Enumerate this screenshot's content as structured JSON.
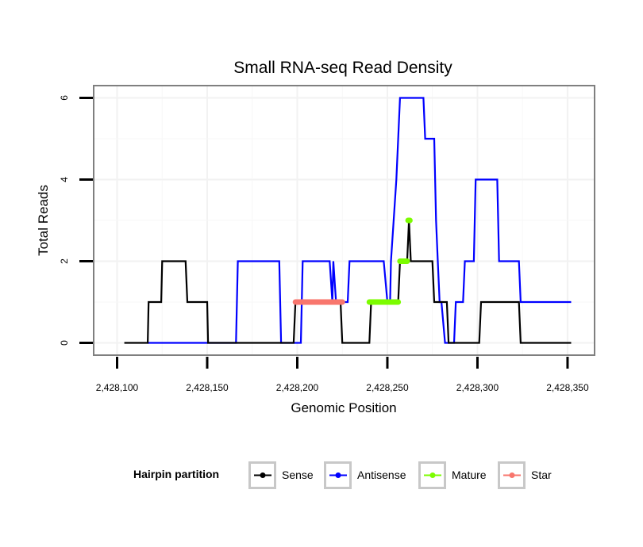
{
  "chart_data": {
    "type": "line",
    "title": "Small RNA-seq Read Density",
    "xlabel": "Genomic Position",
    "ylabel": "Total Reads",
    "xlim": [
      2428087,
      2428365
    ],
    "ylim": [
      -0.3,
      6.3
    ],
    "x_ticks": [
      2428100,
      2428150,
      2428200,
      2428250,
      2428300,
      2428350
    ],
    "x_tick_labels": [
      "2,428,100",
      "2,428,150",
      "2,428,200",
      "2,428,250",
      "2,428,300",
      "2,428,350"
    ],
    "y_ticks": [
      0,
      2,
      4,
      6
    ],
    "y_tick_labels": [
      "0",
      "2",
      "4",
      "6"
    ],
    "grid": true,
    "legend": {
      "title": "Hairpin partition",
      "placement": "bottom",
      "entries": [
        "Sense",
        "Antisense",
        "Mature",
        "Star"
      ]
    },
    "series": [
      {
        "name": "Sense",
        "color": "#000000",
        "points": [
          [
            2428104,
            0
          ],
          [
            2428117,
            0
          ],
          [
            2428117.5,
            1
          ],
          [
            2428124.5,
            1
          ],
          [
            2428125,
            2
          ],
          [
            2428138,
            2
          ],
          [
            2428139,
            1
          ],
          [
            2428150,
            1
          ],
          [
            2428150.5,
            0
          ],
          [
            2428198,
            0
          ],
          [
            2428199,
            1
          ],
          [
            2428224,
            1
          ],
          [
            2428225,
            0
          ],
          [
            2428240,
            0
          ],
          [
            2428241,
            1
          ],
          [
            2428256,
            1
          ],
          [
            2428257,
            2
          ],
          [
            2428261,
            2
          ],
          [
            2428262,
            3
          ],
          [
            2428263,
            2
          ],
          [
            2428275,
            2
          ],
          [
            2428276,
            1
          ],
          [
            2428283,
            1
          ],
          [
            2428284,
            0
          ],
          [
            2428301,
            0
          ],
          [
            2428302,
            1
          ],
          [
            2428323,
            1
          ],
          [
            2428324,
            0
          ],
          [
            2428352,
            0
          ]
        ]
      },
      {
        "name": "Antisense",
        "color": "#0000ff",
        "points": [
          [
            2428117,
            0
          ],
          [
            2428166,
            0
          ],
          [
            2428167,
            2
          ],
          [
            2428190,
            2
          ],
          [
            2428191,
            0
          ],
          [
            2428202,
            0
          ],
          [
            2428203,
            2
          ],
          [
            2428218,
            2
          ],
          [
            2428219.5,
            1
          ],
          [
            2428220,
            2
          ],
          [
            2428221.5,
            1
          ],
          [
            2428228,
            1
          ],
          [
            2428229,
            2
          ],
          [
            2428248,
            2
          ],
          [
            2428250,
            1
          ],
          [
            2428251.5,
            1
          ],
          [
            2428252,
            2
          ],
          [
            2428255,
            4
          ],
          [
            2428257,
            6
          ],
          [
            2428270,
            6
          ],
          [
            2428271,
            5
          ],
          [
            2428276,
            5
          ],
          [
            2428277,
            3
          ],
          [
            2428278,
            2
          ],
          [
            2428279,
            1
          ],
          [
            2428280,
            1
          ],
          [
            2428282,
            0
          ],
          [
            2428287,
            0
          ],
          [
            2428288,
            1
          ],
          [
            2428292,
            1
          ],
          [
            2428293,
            2
          ],
          [
            2428298,
            2
          ],
          [
            2428299,
            4
          ],
          [
            2428311,
            4
          ],
          [
            2428312,
            2
          ],
          [
            2428323,
            2
          ],
          [
            2428324,
            1
          ],
          [
            2428352,
            1
          ]
        ]
      }
    ],
    "segments": [
      {
        "name": "Star",
        "color": "#f8766d",
        "x": [
          2428199,
          2428225
        ],
        "y": 1
      },
      {
        "name": "Mature",
        "color": "#7cfc00",
        "x": [
          2428240,
          2428256
        ],
        "y": 1
      },
      {
        "name": "Mature",
        "color": "#7cfc00",
        "x": [
          2428257,
          2428261
        ],
        "y": 2
      },
      {
        "name": "Mature",
        "color": "#7cfc00",
        "x": [
          2428261.5,
          2428262.5
        ],
        "y": 3
      }
    ]
  },
  "legend_items": [
    {
      "label": "Sense",
      "color": "#000000"
    },
    {
      "label": "Antisense",
      "color": "#0000ff"
    },
    {
      "label": "Mature",
      "color": "#7cfc00"
    },
    {
      "label": "Star",
      "color": "#f8766d"
    }
  ]
}
